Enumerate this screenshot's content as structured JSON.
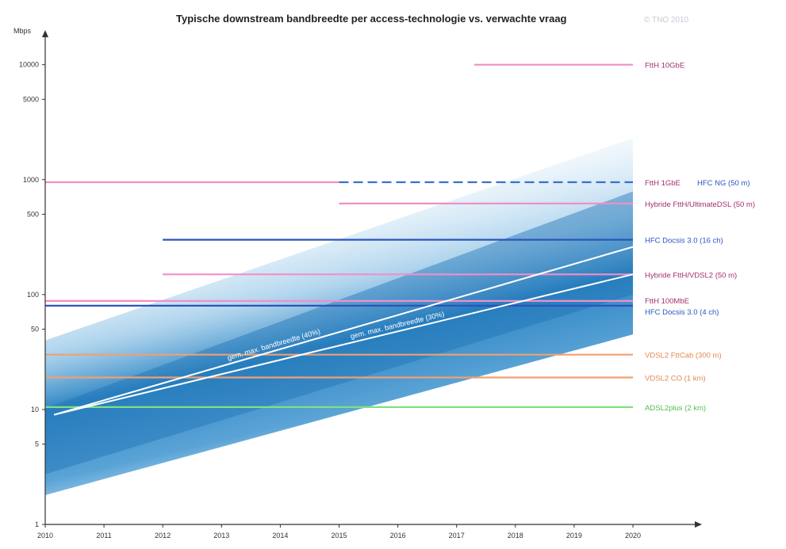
{
  "chart_data": {
    "type": "line",
    "title": "Typische downstream bandbreedte per access-technologie vs. verwachte vraag",
    "copyright": "© TNO 2010",
    "ylabel": "Mbps",
    "yscale": "log",
    "ylim": [
      1,
      20000
    ],
    "xlim": [
      2010,
      2021.2
    ],
    "x_ticks": [
      "2010",
      "2011",
      "2012",
      "2013",
      "2014",
      "2015",
      "2016",
      "2017",
      "2018",
      "2019",
      "2020"
    ],
    "y_ticks": [
      {
        "value": 1,
        "label": "1"
      },
      {
        "value": 5,
        "label": "5"
      },
      {
        "value": 10,
        "label": "10"
      },
      {
        "value": 50,
        "label": "50"
      },
      {
        "value": 100,
        "label": "100"
      },
      {
        "value": 500,
        "label": "500"
      },
      {
        "value": 1000,
        "label": "1000"
      },
      {
        "value": 5000,
        "label": "5000"
      },
      {
        "value": 10000,
        "label": "10000"
      }
    ],
    "demand_band": {
      "x": [
        2010,
        2020
      ],
      "low": [
        1.8,
        45
      ],
      "high": [
        40,
        2300
      ],
      "center": [
        5,
        260
      ]
    },
    "series": [
      {
        "name": "FttH 10GbE",
        "x": [
          2017.3,
          2020
        ],
        "y": 10000,
        "color": "#f08fc8",
        "label_color": "#a0306e",
        "style": "solid"
      },
      {
        "name": "FttH 1GbE",
        "x": [
          2010,
          2015
        ],
        "y": 950,
        "color": "#f08fc8",
        "label_color": "#a0306e",
        "style": "solid"
      },
      {
        "name": "HFC NG (50 m)",
        "x": [
          2015,
          2020
        ],
        "y": 950,
        "color": "#3a6fd0",
        "label_color": "#2a55c0",
        "style": "dashed"
      },
      {
        "name": "Hybride FttH/UltimateDSL (50 m)",
        "x": [
          2015,
          2020
        ],
        "y": 620,
        "color": "#f08fc8",
        "label_color": "#a0306e",
        "style": "solid"
      },
      {
        "name": "HFC Docsis 3.0 (16 ch)",
        "x": [
          2012,
          2020
        ],
        "y": 300,
        "color": "#2c55b8",
        "label_color": "#2a55c0",
        "style": "solid"
      },
      {
        "name": "Hybride FttH/VDSL2 (50 m)",
        "x": [
          2012,
          2020
        ],
        "y": 150,
        "color": "#f08fc8",
        "label_color": "#a0306e",
        "style": "solid"
      },
      {
        "name": "FttH 100MbE",
        "x": [
          2010,
          2020
        ],
        "y": 88,
        "color": "#f08fc8",
        "label_color": "#a0306e",
        "style": "solid"
      },
      {
        "name": "HFC Docsis 3.0 (4 ch)",
        "x": [
          2010,
          2020
        ],
        "y": 80,
        "color": "#2c55b8",
        "label_color": "#2a55c0",
        "style": "solid"
      },
      {
        "name": "VDSL2 FttCab (300 m)",
        "x": [
          2010,
          2020
        ],
        "y": 30,
        "color": "#f0a070",
        "label_color": "#e08a50",
        "style": "solid"
      },
      {
        "name": "VDSL2 CO (1 km)",
        "x": [
          2010,
          2020
        ],
        "y": 19,
        "color": "#f0a070",
        "label_color": "#e08a50",
        "style": "solid"
      },
      {
        "name": "ADSL2plus (2 km)",
        "x": [
          2010,
          2020
        ],
        "y": 10.5,
        "color": "#80e080",
        "label_color": "#50c050",
        "style": "solid"
      }
    ],
    "trends": [
      {
        "name": "gem. max. bandbreedte (40%)",
        "x": [
          2010.15,
          2020
        ],
        "y": [
          9,
          260
        ],
        "label_x": 2013.9,
        "color": "#ffffff"
      },
      {
        "name": "gem. max. bandbreedte (30%)",
        "x": [
          2010.15,
          2020
        ],
        "y": [
          9,
          150
        ],
        "label_x": 2016.0,
        "color": "#ffffff"
      }
    ],
    "legend": "right of lines (inline labels)",
    "grid": false
  }
}
